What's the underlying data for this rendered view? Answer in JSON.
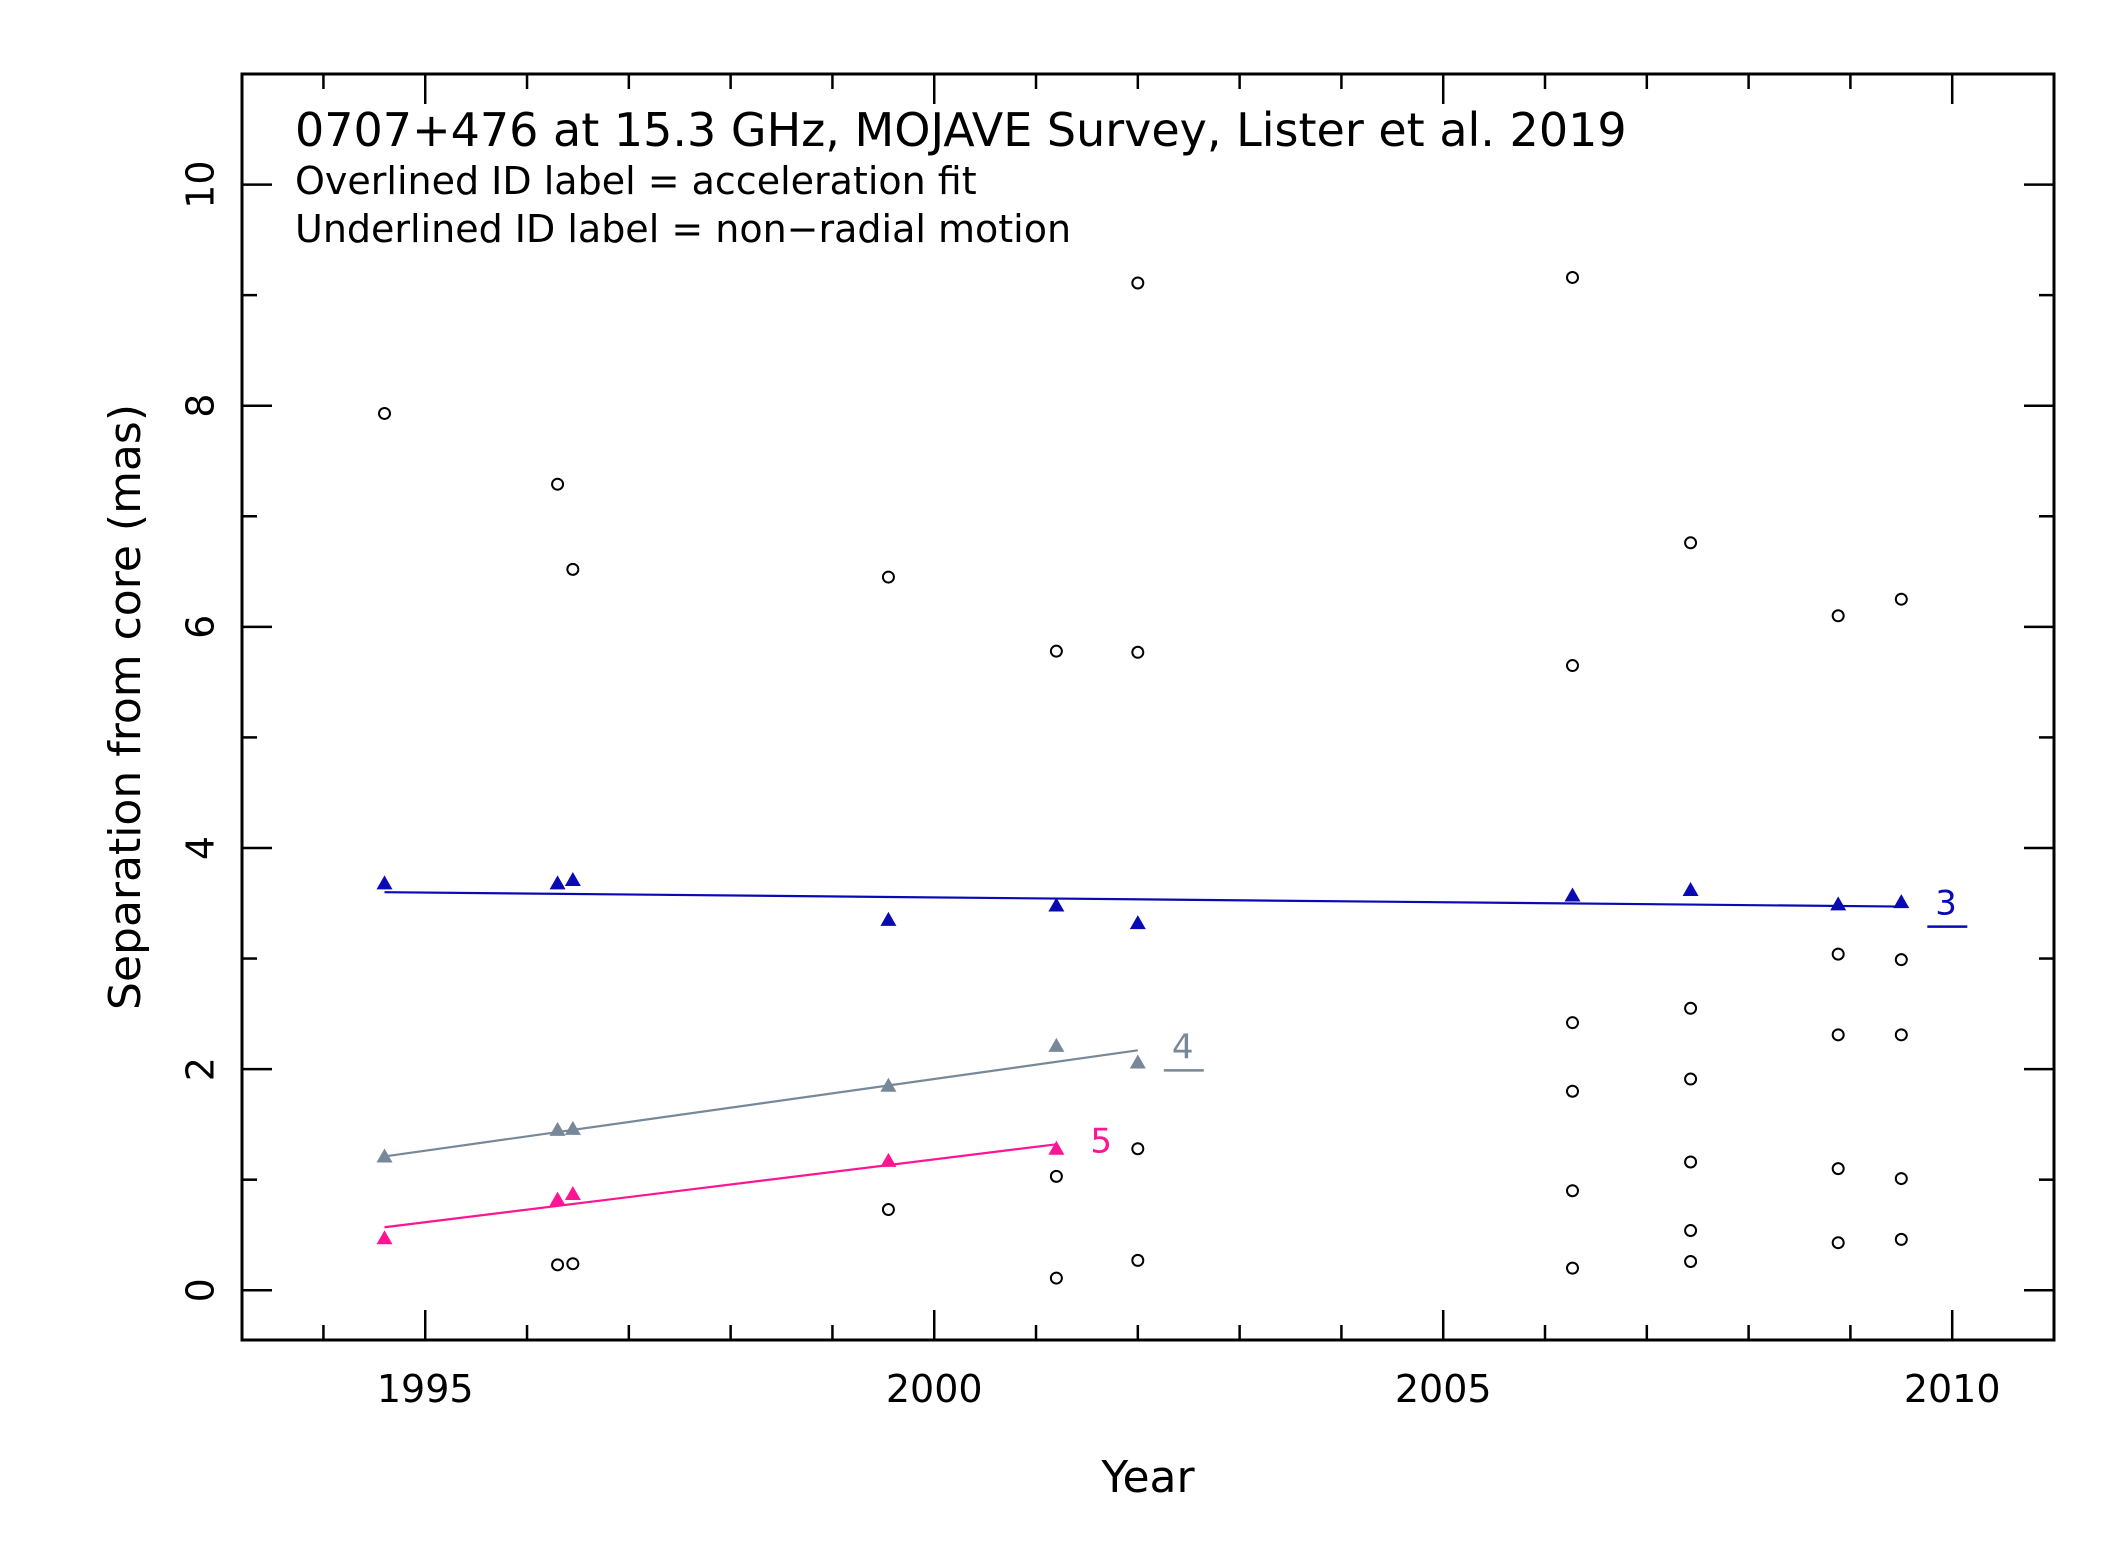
{
  "chart_data": {
    "type": "scatter",
    "title": "0707+476 at 15.3 GHz, MOJAVE Survey, Lister et al. 2019",
    "notes": [
      "Overlined ID label = acceleration fit",
      "Underlined ID label = non−radial motion"
    ],
    "xlabel": "Year",
    "ylabel": "Separation from core (mas)",
    "xlim": [
      1993.2,
      2011.0
    ],
    "ylim": [
      -0.45,
      11.0
    ],
    "xticks": [
      1995,
      2000,
      2005,
      2010
    ],
    "xtick_labels": [
      "1995",
      "2000",
      "2005",
      "2010"
    ],
    "yticks": [
      0,
      2,
      4,
      6,
      8,
      10
    ],
    "ytick_labels": [
      "0",
      "2",
      "4",
      "6",
      "8",
      "10"
    ],
    "x_minor_step": 1,
    "y_minor_step": 1,
    "grid": false,
    "other_points": [
      {
        "x": 1994.6,
        "y": 7.93
      },
      {
        "x": 1996.3,
        "y": 7.29
      },
      {
        "x": 1996.45,
        "y": 6.52
      },
      {
        "x": 1996.3,
        "y": 0.23
      },
      {
        "x": 1996.45,
        "y": 0.24
      },
      {
        "x": 1999.55,
        "y": 6.45
      },
      {
        "x": 1999.55,
        "y": 0.73
      },
      {
        "x": 2001.2,
        "y": 5.78
      },
      {
        "x": 2001.2,
        "y": 1.03
      },
      {
        "x": 2001.2,
        "y": 0.11
      },
      {
        "x": 2002.0,
        "y": 9.11
      },
      {
        "x": 2002.0,
        "y": 5.77
      },
      {
        "x": 2002.0,
        "y": 1.28
      },
      {
        "x": 2002.0,
        "y": 0.27
      },
      {
        "x": 2006.27,
        "y": 9.16
      },
      {
        "x": 2006.27,
        "y": 5.65
      },
      {
        "x": 2006.27,
        "y": 2.42
      },
      {
        "x": 2006.27,
        "y": 1.8
      },
      {
        "x": 2006.27,
        "y": 0.9
      },
      {
        "x": 2006.27,
        "y": 0.2
      },
      {
        "x": 2007.43,
        "y": 6.76
      },
      {
        "x": 2007.43,
        "y": 2.55
      },
      {
        "x": 2007.43,
        "y": 1.91
      },
      {
        "x": 2007.43,
        "y": 1.16
      },
      {
        "x": 2007.43,
        "y": 0.54
      },
      {
        "x": 2007.43,
        "y": 0.26
      },
      {
        "x": 2008.88,
        "y": 6.1
      },
      {
        "x": 2008.88,
        "y": 3.04
      },
      {
        "x": 2008.88,
        "y": 2.31
      },
      {
        "x": 2008.88,
        "y": 1.1
      },
      {
        "x": 2008.88,
        "y": 0.43
      },
      {
        "x": 2009.5,
        "y": 6.25
      },
      {
        "x": 2009.5,
        "y": 2.99
      },
      {
        "x": 2009.5,
        "y": 2.31
      },
      {
        "x": 2009.5,
        "y": 1.01
      },
      {
        "x": 2009.5,
        "y": 0.46
      }
    ],
    "series": [
      {
        "name": "3",
        "color": "#0a0ab4",
        "underlined": true,
        "x": [
          1994.6,
          1996.3,
          1996.45,
          1999.55,
          2001.2,
          2002.0,
          2006.27,
          2007.43,
          2008.88,
          2009.5
        ],
        "y": [
          3.68,
          3.68,
          3.71,
          3.35,
          3.48,
          3.32,
          3.57,
          3.62,
          3.49,
          3.51
        ],
        "fit": {
          "x": [
            1994.6,
            2009.5
          ],
          "y": [
            3.6,
            3.47
          ]
        }
      },
      {
        "name": "4",
        "color": "#778899",
        "underlined": true,
        "x": [
          1994.6,
          1996.3,
          1996.45,
          1999.55,
          2001.2,
          2002.0
        ],
        "y": [
          1.21,
          1.45,
          1.46,
          1.85,
          2.21,
          2.06
        ],
        "fit": {
          "x": [
            1994.6,
            2002.0
          ],
          "y": [
            1.21,
            2.17
          ]
        }
      },
      {
        "name": "5",
        "color": "#ff1493",
        "underlined": false,
        "x": [
          1994.6,
          1996.3,
          1996.45,
          1999.55,
          2001.2
        ],
        "y": [
          0.47,
          0.82,
          0.87,
          1.17,
          1.28
        ],
        "fit": {
          "x": [
            1994.6,
            2001.2
          ],
          "y": [
            0.57,
            1.32
          ]
        }
      }
    ]
  }
}
